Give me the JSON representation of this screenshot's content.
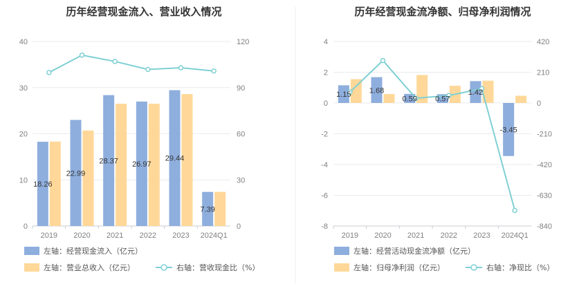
{
  "charts": [
    {
      "type": "bar",
      "title": "历年经营现金流入、营业收入情况",
      "categories": [
        "2019",
        "2020",
        "2021",
        "2022",
        "2023",
        "2024Q1"
      ],
      "left_ticks": [
        "40",
        "30",
        "20",
        "10",
        "0"
      ],
      "right_ticks": [
        "120",
        "90",
        "60",
        "30",
        "0"
      ],
      "left_ylim": [
        0,
        40
      ],
      "right_ylim": [
        0,
        120
      ],
      "series": [
        {
          "name": "左轴：经营现金流入（亿元）",
          "axis": "left",
          "kind": "bar",
          "color": "#8eaedd",
          "values": [
            18.26,
            22.99,
            28.37,
            26.97,
            29.44,
            7.39
          ],
          "labels": [
            "18.26",
            "22.99",
            "28.37",
            "26.97",
            "29.44",
            "7.39"
          ]
        },
        {
          "name": "左轴：营业总收入（亿元）",
          "axis": "left",
          "kind": "bar",
          "color": "#ffd899",
          "values": [
            18.3,
            20.7,
            26.5,
            26.5,
            28.6,
            7.4
          ]
        },
        {
          "name": "右轴：营收现金比（%）",
          "axis": "right",
          "kind": "line",
          "color": "#7fd0d4",
          "values": [
            99.8,
            111.1,
            107.0,
            101.8,
            102.9,
            100.8
          ]
        }
      ]
    },
    {
      "type": "bar",
      "title": "历年经营现金流净额、归母净利润情况",
      "categories": [
        "2019",
        "2020",
        "2021",
        "2022",
        "2023",
        "2024Q1"
      ],
      "left_ticks": [
        "4",
        "2",
        "0",
        "-2",
        "-4",
        "-6",
        "-8"
      ],
      "right_ticks": [
        "420",
        "210",
        "0",
        "-210",
        "-420",
        "-630",
        "-840"
      ],
      "left_ylim": [
        -8,
        4
      ],
      "right_ylim": [
        -840,
        420
      ],
      "series": [
        {
          "name": "左轴：经营活动现金流净额（亿元）",
          "axis": "left",
          "kind": "bar",
          "color": "#8eaedd",
          "values": [
            1.15,
            1.68,
            0.59,
            0.57,
            1.42,
            -3.45
          ],
          "labels": [
            "1.15",
            "1.68",
            "0.59",
            "0.57",
            "1.42",
            "-3.45"
          ]
        },
        {
          "name": "左轴：归母净利润（亿元）",
          "axis": "left",
          "kind": "bar",
          "color": "#ffd899",
          "values": [
            1.55,
            0.58,
            1.82,
            1.12,
            1.45,
            0.47
          ]
        },
        {
          "name": "右轴：净现比（%）",
          "axis": "right",
          "kind": "line",
          "color": "#7fd0d4",
          "values": [
            74.2,
            289.7,
            32.4,
            50.9,
            97.9,
            -734.0
          ]
        }
      ]
    }
  ]
}
